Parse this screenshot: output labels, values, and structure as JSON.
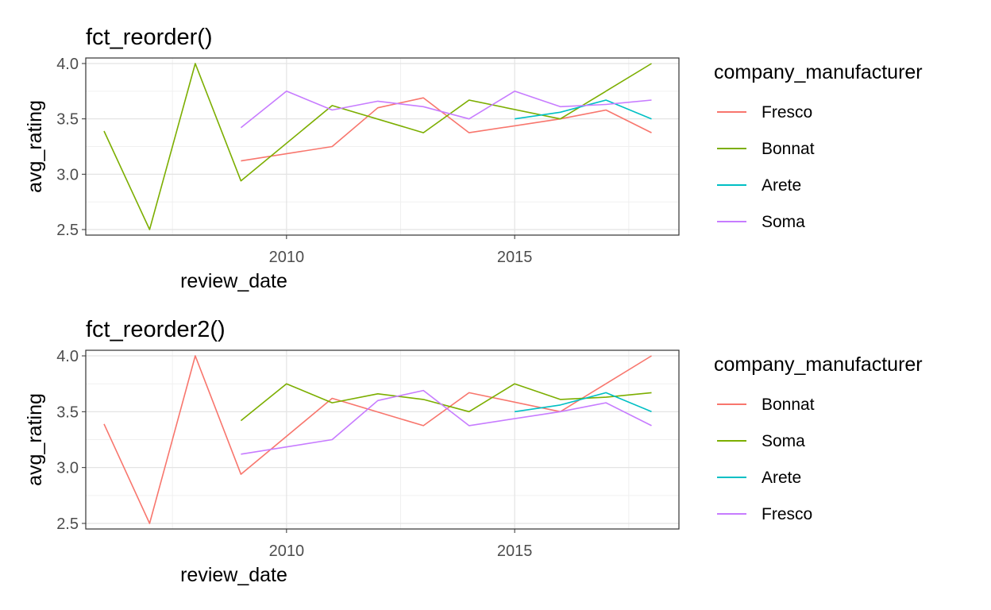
{
  "chart_data": [
    {
      "type": "line",
      "title": "fct_reorder()",
      "xlabel": "review_date",
      "ylabel": "avg_rating",
      "xlim": [
        2005.6,
        2018.6
      ],
      "ylim": [
        2.45,
        4.05
      ],
      "x_ticks": [
        2010,
        2015
      ],
      "x_tick_labels": [
        "2010",
        "2015"
      ],
      "y_ticks": [
        2.5,
        3.0,
        3.5,
        4.0
      ],
      "y_tick_labels": [
        "2.5",
        "3.0",
        "3.5",
        "4.0"
      ],
      "grid": true,
      "legend": {
        "title": "company_manufacturer",
        "placement": "right"
      },
      "series": [
        {
          "name": "Fresco",
          "color": "#F8766D",
          "points": [
            [
              2009,
              3.12
            ],
            [
              2011,
              3.25
            ],
            [
              2012,
              3.6
            ],
            [
              2013,
              3.69
            ],
            [
              2014,
              3.375
            ],
            [
              2016,
              3.5
            ],
            [
              2017,
              3.58
            ],
            [
              2018,
              3.375
            ]
          ]
        },
        {
          "name": "Bonnat",
          "color": "#7CAE00",
          "points": [
            [
              2006,
              3.39
            ],
            [
              2007,
              2.5
            ],
            [
              2008,
              4.0
            ],
            [
              2009,
              2.94
            ],
            [
              2011,
              3.62
            ],
            [
              2013,
              3.375
            ],
            [
              2014,
              3.67
            ],
            [
              2016,
              3.5
            ],
            [
              2018,
              4.0
            ]
          ]
        },
        {
          "name": "Arete",
          "color": "#00BFC4",
          "points": [
            [
              2015,
              3.5
            ],
            [
              2016,
              3.56
            ],
            [
              2017,
              3.67
            ],
            [
              2018,
              3.5
            ]
          ]
        },
        {
          "name": "Soma",
          "color": "#C77CFF",
          "points": [
            [
              2009,
              3.42
            ],
            [
              2010,
              3.75
            ],
            [
              2011,
              3.58
            ],
            [
              2012,
              3.66
            ],
            [
              2013,
              3.61
            ],
            [
              2014,
              3.5
            ],
            [
              2015,
              3.75
            ],
            [
              2016,
              3.61
            ],
            [
              2017,
              3.63
            ],
            [
              2018,
              3.67
            ]
          ]
        }
      ]
    },
    {
      "type": "line",
      "title": "fct_reorder2()",
      "xlabel": "review_date",
      "ylabel": "avg_rating",
      "xlim": [
        2005.6,
        2018.6
      ],
      "ylim": [
        2.45,
        4.05
      ],
      "x_ticks": [
        2010,
        2015
      ],
      "x_tick_labels": [
        "2010",
        "2015"
      ],
      "y_ticks": [
        2.5,
        3.0,
        3.5,
        4.0
      ],
      "y_tick_labels": [
        "2.5",
        "3.0",
        "3.5",
        "4.0"
      ],
      "grid": true,
      "legend": {
        "title": "company_manufacturer",
        "placement": "right"
      },
      "series": [
        {
          "name": "Bonnat",
          "color": "#F8766D",
          "points": [
            [
              2006,
              3.39
            ],
            [
              2007,
              2.5
            ],
            [
              2008,
              4.0
            ],
            [
              2009,
              2.94
            ],
            [
              2011,
              3.62
            ],
            [
              2013,
              3.375
            ],
            [
              2014,
              3.67
            ],
            [
              2016,
              3.5
            ],
            [
              2018,
              4.0
            ]
          ]
        },
        {
          "name": "Soma",
          "color": "#7CAE00",
          "points": [
            [
              2009,
              3.42
            ],
            [
              2010,
              3.75
            ],
            [
              2011,
              3.58
            ],
            [
              2012,
              3.66
            ],
            [
              2013,
              3.61
            ],
            [
              2014,
              3.5
            ],
            [
              2015,
              3.75
            ],
            [
              2016,
              3.61
            ],
            [
              2017,
              3.63
            ],
            [
              2018,
              3.67
            ]
          ]
        },
        {
          "name": "Arete",
          "color": "#00BFC4",
          "points": [
            [
              2015,
              3.5
            ],
            [
              2016,
              3.56
            ],
            [
              2017,
              3.67
            ],
            [
              2018,
              3.5
            ]
          ]
        },
        {
          "name": "Fresco",
          "color": "#C77CFF",
          "points": [
            [
              2009,
              3.12
            ],
            [
              2011,
              3.25
            ],
            [
              2012,
              3.6
            ],
            [
              2013,
              3.69
            ],
            [
              2014,
              3.375
            ],
            [
              2016,
              3.5
            ],
            [
              2017,
              3.58
            ],
            [
              2018,
              3.375
            ]
          ]
        }
      ]
    }
  ]
}
